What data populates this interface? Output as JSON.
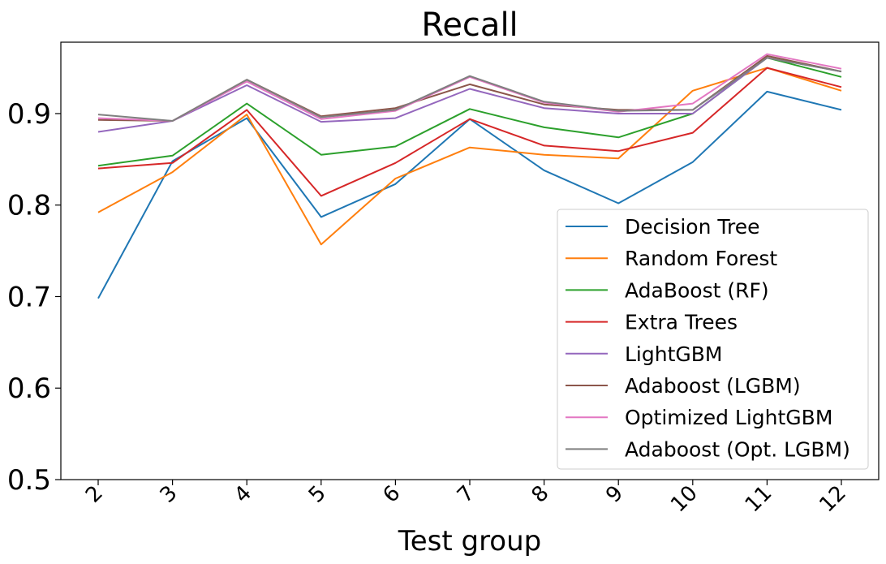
{
  "chart_data": {
    "type": "line",
    "title": "Recall",
    "xlabel": "Test group",
    "ylabel": "",
    "categories": [
      "2",
      "3",
      "4",
      "5",
      "6",
      "7",
      "8",
      "9",
      "10",
      "11",
      "12"
    ],
    "ylim": [
      0.5,
      0.978
    ],
    "yticks": [
      "0.5",
      "0.6",
      "0.7",
      "0.8",
      "0.9"
    ],
    "ytick_values": [
      0.5,
      0.6,
      0.7,
      0.8,
      0.9
    ],
    "grid": false,
    "legend_position": "lower-right",
    "series": [
      {
        "name": "Decision Tree",
        "color": "#1f77b4",
        "values": [
          0.698,
          0.848,
          0.895,
          0.787,
          0.823,
          0.894,
          0.838,
          0.802,
          0.847,
          0.924,
          0.904
        ]
      },
      {
        "name": "Random Forest",
        "color": "#ff7f0e",
        "values": [
          0.792,
          0.836,
          0.899,
          0.757,
          0.829,
          0.863,
          0.855,
          0.851,
          0.925,
          0.95,
          0.925
        ]
      },
      {
        "name": "AdaBoost (RF)",
        "color": "#2ca02c",
        "values": [
          0.843,
          0.854,
          0.911,
          0.855,
          0.864,
          0.905,
          0.885,
          0.874,
          0.9,
          0.961,
          0.94
        ]
      },
      {
        "name": "Extra Trees",
        "color": "#d62728",
        "values": [
          0.84,
          0.846,
          0.904,
          0.81,
          0.846,
          0.894,
          0.865,
          0.859,
          0.879,
          0.95,
          0.929
        ]
      },
      {
        "name": "LightGBM",
        "color": "#9467bd",
        "values": [
          0.88,
          0.892,
          0.931,
          0.891,
          0.895,
          0.927,
          0.906,
          0.9,
          0.9,
          0.961,
          0.946
        ]
      },
      {
        "name": "Adaboost (LGBM)",
        "color": "#8c564b",
        "values": [
          0.893,
          0.892,
          0.937,
          0.897,
          0.906,
          0.932,
          0.91,
          0.904,
          0.904,
          0.963,
          0.946
        ]
      },
      {
        "name": "Optimized LightGBM",
        "color": "#e377c2",
        "values": [
          0.895,
          0.892,
          0.935,
          0.894,
          0.903,
          0.94,
          0.912,
          0.902,
          0.911,
          0.965,
          0.949
        ]
      },
      {
        "name": "Adaboost (Opt. LGBM)",
        "color": "#7f7f7f",
        "values": [
          0.899,
          0.892,
          0.937,
          0.896,
          0.904,
          0.941,
          0.913,
          0.903,
          0.904,
          0.961,
          0.946
        ]
      }
    ]
  }
}
